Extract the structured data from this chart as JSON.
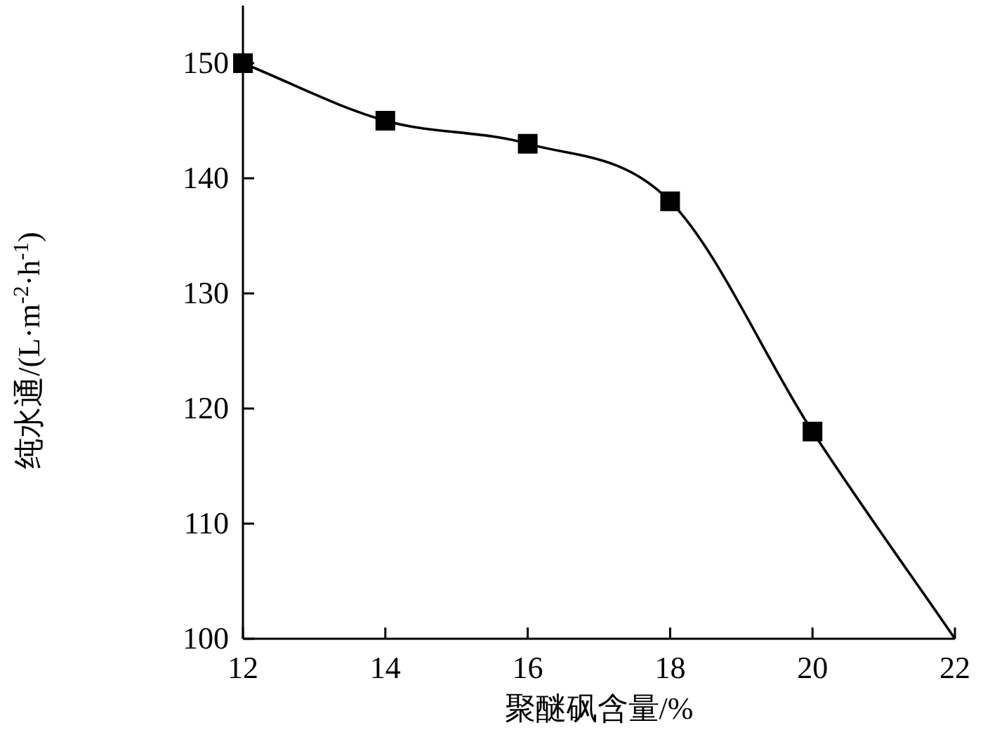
{
  "chart_data": {
    "type": "line",
    "xlabel": "聚醚砜含量/%",
    "ylabel": "纯水通/(L·m$^{-2}$·h$^{-1}$)",
    "xlim": [
      12,
      22
    ],
    "ylim": [
      100,
      155
    ],
    "xticks": [
      12,
      14,
      16,
      18,
      20,
      22
    ],
    "yticks": [
      100,
      110,
      120,
      130,
      140,
      150
    ],
    "series": [
      {
        "type": "line",
        "color": "#000000",
        "marker": "none",
        "x": [
          12,
          14,
          16,
          18,
          20,
          22
        ],
        "values": [
          150,
          145,
          143,
          138,
          118,
          100
        ]
      },
      {
        "type": "scatter",
        "color": "#000000",
        "marker": "square",
        "x": [
          12,
          14,
          16,
          18,
          20
        ],
        "values": [
          150,
          145,
          143,
          138,
          118
        ]
      }
    ]
  }
}
